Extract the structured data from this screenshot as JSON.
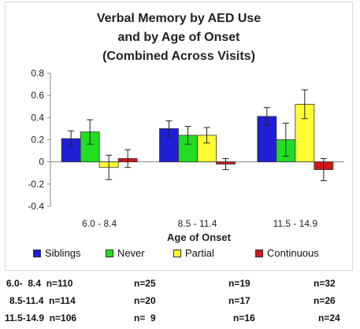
{
  "chart_data": {
    "type": "bar",
    "title_lines": [
      "Verbal Memory by AED Use",
      "and by Age of Onset",
      "(Combined Across Visits)"
    ],
    "xlabel": "Age of Onset",
    "ylabel": "",
    "categories": [
      "6.0 - 8.4",
      "8.5 - 11.4",
      "11.5 - 14.9"
    ],
    "ylim": [
      -0.4,
      0.8
    ],
    "yticks": [
      "0.8",
      "0.6",
      "0.4",
      "0.2",
      "0",
      "-0.2",
      "-0.4"
    ],
    "ytick_values": [
      0.8,
      0.6,
      0.4,
      0.2,
      0,
      -0.2,
      -0.4
    ],
    "grid": false,
    "legend_position": "bottom",
    "series": [
      {
        "name": "Siblings",
        "color": "#1f1fd6",
        "values": [
          0.21,
          0.3,
          0.41
        ],
        "error": [
          0.07,
          0.07,
          0.08
        ]
      },
      {
        "name": "Never",
        "color": "#22dd22",
        "values": [
          0.27,
          0.24,
          0.2
        ],
        "error": [
          0.11,
          0.08,
          0.15
        ]
      },
      {
        "name": "Partial",
        "color": "#ffff33",
        "values": [
          -0.05,
          0.24,
          0.52
        ],
        "error": [
          0.11,
          0.07,
          0.13
        ]
      },
      {
        "name": "Continuous",
        "color": "#d01818",
        "values": [
          0.03,
          -0.02,
          -0.07
        ],
        "error": [
          0.08,
          0.05,
          0.1
        ]
      }
    ]
  },
  "counts_table": [
    [
      "6.0-  8.4  n=110",
      "n=25",
      "n=19",
      "n=32"
    ],
    [
      "8.5-11.4  n=114",
      "n=20",
      "n=17",
      "n=26"
    ],
    [
      "11.5-14.9  n=106",
      "n=  9",
      "n=16",
      "n=24"
    ]
  ]
}
